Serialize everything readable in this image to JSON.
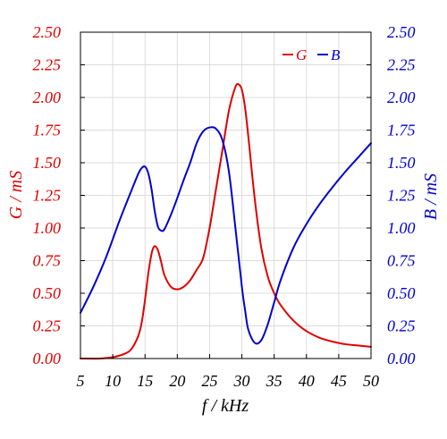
{
  "colors": {
    "g_series": "#e00000",
    "b_series": "#0000d0",
    "x_axis_text": "#000000",
    "grid": "#dcdcdc",
    "frame": "#000000"
  },
  "chart_data": {
    "type": "line",
    "xlabel": "f / kHz",
    "ylabel_left": "G / mS",
    "ylabel_right": "B / mS",
    "xlim": [
      5,
      50
    ],
    "ylim_left": [
      0,
      2.5
    ],
    "ylim_right": [
      0,
      2.5
    ],
    "x_ticks": [
      "5",
      "10",
      "15",
      "20",
      "25",
      "30",
      "35",
      "40",
      "45",
      "50"
    ],
    "y_ticks_left": [
      "0.00",
      "0.25",
      "0.50",
      "0.75",
      "1.00",
      "1.25",
      "1.50",
      "1.75",
      "2.00",
      "2.25",
      "2.50"
    ],
    "y_ticks_right": [
      "0.00",
      "0.25",
      "0.50",
      "0.75",
      "1.00",
      "1.25",
      "1.50",
      "1.75",
      "2.00",
      "2.25",
      "2.50"
    ],
    "grid": true,
    "legend_position": "top-right",
    "series": [
      {
        "name": "G",
        "axis": "left",
        "x": [
          5,
          8,
          10,
          12,
          13,
          14,
          14.5,
          15,
          15.5,
          16,
          16.3,
          16.6,
          17,
          17.5,
          18,
          19,
          20,
          21,
          22,
          23,
          24,
          25,
          26,
          27,
          28,
          29,
          29.5,
          30,
          30.5,
          31,
          32,
          33,
          34,
          35,
          36,
          38,
          40,
          42,
          44,
          46,
          48,
          50
        ],
        "y": [
          0.0,
          0.0,
          0.01,
          0.04,
          0.08,
          0.18,
          0.28,
          0.45,
          0.65,
          0.8,
          0.85,
          0.86,
          0.83,
          0.74,
          0.64,
          0.55,
          0.53,
          0.55,
          0.6,
          0.68,
          0.77,
          1.0,
          1.3,
          1.6,
          1.9,
          2.08,
          2.1,
          2.06,
          1.92,
          1.7,
          1.22,
          0.85,
          0.63,
          0.5,
          0.41,
          0.29,
          0.21,
          0.16,
          0.13,
          0.11,
          0.1,
          0.09
        ]
      },
      {
        "name": "B",
        "axis": "right",
        "x": [
          5,
          7,
          9,
          11,
          13,
          14,
          14.5,
          15,
          15.5,
          16,
          16.5,
          17,
          17.5,
          18,
          19,
          20,
          21,
          22,
          23,
          24,
          25,
          26,
          27,
          28,
          29,
          30,
          30.5,
          31,
          32,
          33,
          34,
          35,
          36,
          38,
          40,
          42,
          44,
          46,
          48,
          50
        ],
        "y": [
          0.35,
          0.55,
          0.78,
          1.05,
          1.3,
          1.42,
          1.46,
          1.47,
          1.42,
          1.3,
          1.13,
          1.01,
          0.98,
          0.99,
          1.1,
          1.23,
          1.37,
          1.5,
          1.65,
          1.74,
          1.77,
          1.76,
          1.67,
          1.43,
          1.0,
          0.55,
          0.37,
          0.22,
          0.12,
          0.14,
          0.26,
          0.43,
          0.6,
          0.85,
          1.03,
          1.18,
          1.31,
          1.43,
          1.54,
          1.65
        ]
      }
    ]
  }
}
